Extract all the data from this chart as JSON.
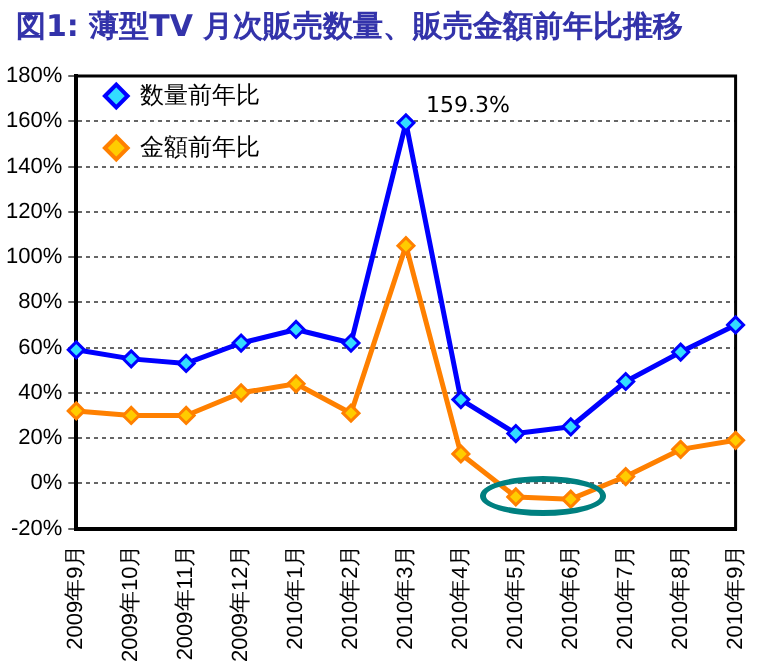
{
  "chart_data": {
    "type": "line",
    "title": "図1: 薄型TV 月次販売数量、販売金額前年比推移",
    "categories": [
      "2009年9月",
      "2009年10月",
      "2009年11月",
      "2009年12月",
      "2010年1月",
      "2010年2月",
      "2010年3月",
      "2010年4月",
      "2010年5月",
      "2010年6月",
      "2010年7月",
      "2010年8月",
      "2010年9月"
    ],
    "series": [
      {
        "name": "数量前年比",
        "color": "#0000ff",
        "values": [
          59,
          55,
          53,
          62,
          68,
          62,
          159.3,
          37,
          22,
          25,
          45,
          58,
          70
        ]
      },
      {
        "name": "金額前年比",
        "color": "#ff8000",
        "values": [
          32,
          30,
          30,
          40,
          44,
          31,
          105,
          13,
          -6,
          -7,
          3,
          15,
          19
        ]
      }
    ],
    "ylim": [
      -20,
      180
    ],
    "yticks": [
      {
        "value": -20,
        "label": "-20%"
      },
      {
        "value": 0,
        "label": "0%"
      },
      {
        "value": 20,
        "label": "20%"
      },
      {
        "value": 40,
        "label": "40%"
      },
      {
        "value": 60,
        "label": "60%"
      },
      {
        "value": 80,
        "label": "80%"
      },
      {
        "value": 100,
        "label": "100%"
      },
      {
        "value": 120,
        "label": "120%"
      },
      {
        "value": 140,
        "label": "140%"
      },
      {
        "value": 160,
        "label": "160%"
      },
      {
        "value": 180,
        "label": "180%"
      }
    ],
    "annotations": [
      {
        "text": "159.3%",
        "x": "2010年3月",
        "y": 159.3
      }
    ],
    "grid": "y",
    "legend": "top left",
    "marker": "diamond",
    "line_style": "solid"
  }
}
